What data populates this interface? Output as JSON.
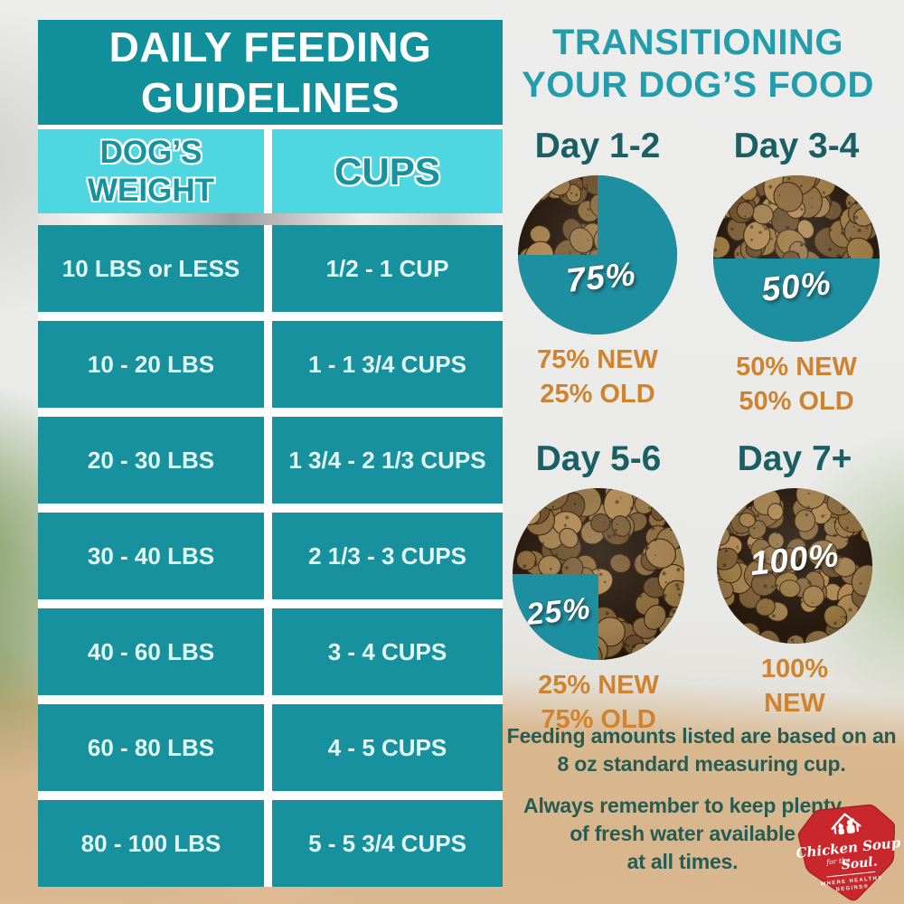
{
  "title": "DAILY FEEDING GUIDELINES",
  "table": {
    "headers": {
      "weight": "DOG’S WEIGHT",
      "cups": "CUPS"
    },
    "rows": [
      {
        "weight": "10 LBS or LESS",
        "cups": "1/2 - 1 CUP"
      },
      {
        "weight": "10 - 20 LBS",
        "cups": "1 - 1 3/4 CUPS"
      },
      {
        "weight": "20 - 30 LBS",
        "cups": "1 3/4 - 2 1/3 CUPS"
      },
      {
        "weight": "30 - 40 LBS",
        "cups": "2 1/3 - 3 CUPS"
      },
      {
        "weight": "40 - 60 LBS",
        "cups": "3 - 4 CUPS"
      },
      {
        "weight": "60 - 80 LBS",
        "cups": "4 - 5 CUPS"
      },
      {
        "weight": "80 - 100 LBS",
        "cups": "5 - 5 3/4 CUPS"
      }
    ]
  },
  "transition": {
    "title": "TRANSITIONING\nYOUR DOG’S FOOD",
    "days": [
      {
        "label": "Day 1-2",
        "percent_label": "75%",
        "new_percent": 75,
        "caption": "75% NEW\n25% OLD"
      },
      {
        "label": "Day 3-4",
        "percent_label": "50%",
        "new_percent": 50,
        "caption": "50% NEW\n50% OLD"
      },
      {
        "label": "Day 5-6",
        "percent_label": "25%",
        "new_percent": 25,
        "caption": "25% NEW\n75% OLD"
      },
      {
        "label": "Day 7+",
        "percent_label": "100%",
        "new_percent": 100,
        "caption": "100%\nNEW"
      }
    ]
  },
  "notes": {
    "measuring_cup": "Feeding amounts listed are based on an\n8 oz standard measuring cup.",
    "fresh_water": "Always remember to keep plenty\nof fresh water available\nat all times."
  },
  "logo": {
    "brand_top": "Chicken Soup",
    "brand_mid": "for the",
    "brand_bottom": "Soul.",
    "tagline_line1": "WHERE HEALTHY",
    "tagline_line2": "BEGINS®"
  },
  "colors": {
    "header_teal": "#11909c",
    "row_teal": "#16919d",
    "subheader_cyan": "#4ed6e1",
    "pie_overlay_teal": "#1e8fa0",
    "transition_title_teal": "#239dab",
    "day_label_teal": "#1a5f63",
    "caption_orange": "#d0832e",
    "note_green": "#265c52",
    "logo_red": "#c8272c"
  },
  "chart_data": [
    {
      "type": "table",
      "title": "DAILY FEEDING GUIDELINES",
      "columns": [
        "DOG’S WEIGHT",
        "CUPS"
      ],
      "rows": [
        [
          "10 LBS or LESS",
          "1/2 - 1 CUP"
        ],
        [
          "10 - 20 LBS",
          "1 - 1 3/4 CUPS"
        ],
        [
          "20 - 30 LBS",
          "1 3/4 - 2 1/3 CUPS"
        ],
        [
          "30 - 40 LBS",
          "2 1/3 - 3 CUPS"
        ],
        [
          "40 - 60 LBS",
          "3 - 4 CUPS"
        ],
        [
          "60 - 80 LBS",
          "4 - 5 CUPS"
        ],
        [
          "80 - 100 LBS",
          "5 - 5 3/4 CUPS"
        ]
      ]
    },
    {
      "type": "pie",
      "title": "TRANSITIONING YOUR DOG’S FOOD",
      "categories": [
        "Day 1-2",
        "Day 3-4",
        "Day 5-6",
        "Day 7+"
      ],
      "series": [
        {
          "name": "NEW food %",
          "values": [
            75,
            50,
            25,
            100
          ]
        },
        {
          "name": "OLD food %",
          "values": [
            25,
            50,
            75,
            0
          ]
        }
      ]
    }
  ]
}
